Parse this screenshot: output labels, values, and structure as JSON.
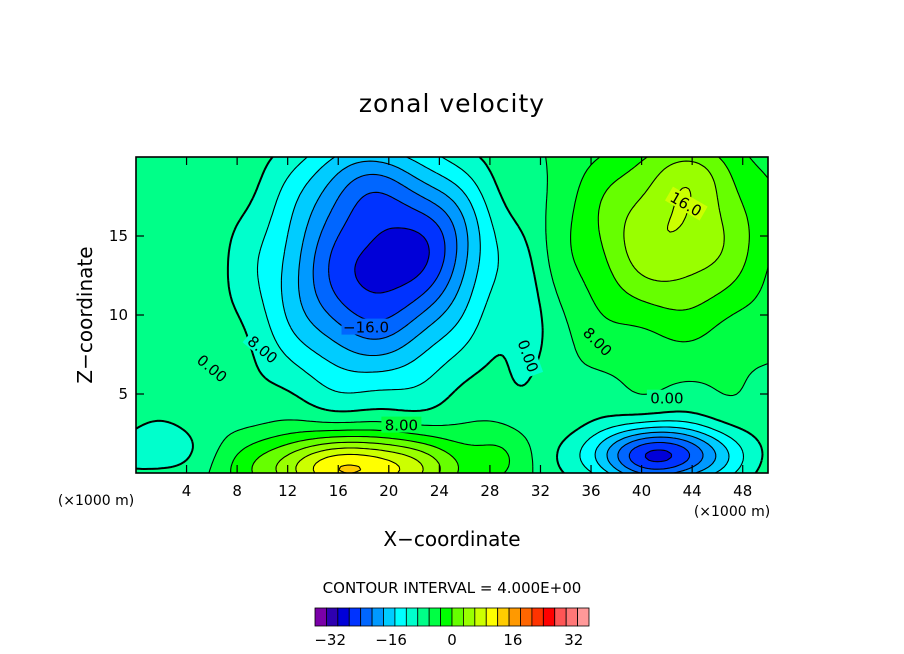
{
  "chart_data": {
    "type": "heatmap",
    "title": "zonal velocity",
    "xlabel": "X−coordinate",
    "ylabel": "Z−coordinate",
    "x_unit": "(×1000 m)",
    "z_unit": "(×1000 m)",
    "xlim": [
      0,
      50
    ],
    "ylim": [
      0,
      20
    ],
    "x_ticks": [
      4,
      8,
      12,
      16,
      20,
      24,
      28,
      32,
      36,
      40,
      44,
      48
    ],
    "x_tick_labels": [
      "4",
      "8",
      "12",
      "16",
      "20",
      "24",
      "28",
      "32",
      "36",
      "40",
      "44",
      "48"
    ],
    "y_ticks": [
      5,
      10,
      15
    ],
    "y_tick_labels": [
      "5",
      "10",
      "15"
    ],
    "contour_interval_text": "CONTOUR INTERVAL = 4.000E+00",
    "contour_interval": 4,
    "colorbar": {
      "min": -36,
      "max": 36,
      "step": 4,
      "colors": [
        "#7a00a8",
        "#2e00b0",
        "#0000d8",
        "#0033ff",
        "#0066ff",
        "#0099ff",
        "#00ccff",
        "#00ffff",
        "#00ffcc",
        "#00ff88",
        "#00ff44",
        "#00ff00",
        "#66ff00",
        "#99ff00",
        "#ccff00",
        "#ffff00",
        "#ffcc00",
        "#ff9900",
        "#ff6600",
        "#ff3300",
        "#ff0000",
        "#ff5555",
        "#ff7777",
        "#ff9999"
      ],
      "tick_values": [
        -32,
        -16,
        0,
        16,
        32
      ],
      "tick_labels": [
        "−32",
        "−16",
        "0",
        "16",
        "32"
      ]
    },
    "field_features": [
      {
        "kind": "low",
        "x": 18,
        "z": 12.6,
        "value": -24,
        "note": "upper-left core"
      },
      {
        "kind": "low",
        "x": 41.5,
        "z": 1.2,
        "value": -22,
        "note": "lower-right core"
      },
      {
        "kind": "high",
        "x": 17.5,
        "z": 0.4,
        "value": 24,
        "note": "bottom-left core"
      },
      {
        "kind": "high",
        "x": 43,
        "z": 14.5,
        "value": 18,
        "note": "upper-right core"
      }
    ],
    "contour_labels": [
      {
        "text": "16.0",
        "x": 43.5,
        "z": 17,
        "rotate": 30
      },
      {
        "text": "−16.0",
        "x": 18.2,
        "z": 9.2,
        "rotate": 0
      },
      {
        "text": "8.00",
        "x": 10,
        "z": 7.8,
        "rotate": 40
      },
      {
        "text": "0.00",
        "x": 6,
        "z": 6.6,
        "rotate": 40
      },
      {
        "text": "0.00",
        "x": 31,
        "z": 7.4,
        "rotate": 70
      },
      {
        "text": "8.00",
        "x": 36.5,
        "z": 8.3,
        "rotate": 45
      },
      {
        "text": "0.00",
        "x": 42,
        "z": 4.7,
        "rotate": 0
      },
      {
        "text": "8.00",
        "x": 21,
        "z": 3.0,
        "rotate": 0
      }
    ]
  }
}
